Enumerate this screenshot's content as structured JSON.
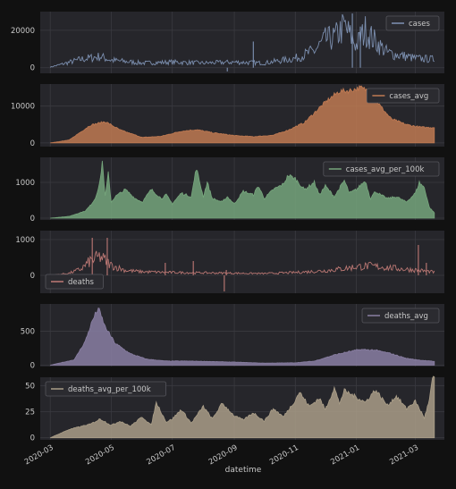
{
  "figure": {
    "background": "#111111",
    "axes_background": "#26262b",
    "grid_color": "#3a3a40",
    "tick_text_color": "#c8c8c8"
  },
  "chart_data": [
    {
      "type": "line",
      "name": "cases",
      "title": "",
      "xlabel": "",
      "ylabel": "",
      "color": "#7f93b5",
      "ylim": [
        -3000,
        30000
      ],
      "yticks": [
        0,
        20000
      ],
      "legend": {
        "label": "cases",
        "position": "top-right"
      },
      "x": [
        "2020-03-01",
        "2020-04-01",
        "2020-04-20",
        "2020-05-01",
        "2020-06-01",
        "2020-07-01",
        "2020-08-01",
        "2020-09-01",
        "2020-10-01",
        "2020-11-01",
        "2020-11-20",
        "2020-12-01",
        "2020-12-10",
        "2020-12-20",
        "2021-01-01",
        "2021-01-10",
        "2021-01-20",
        "2021-02-01",
        "2021-02-15",
        "2021-03-01",
        "2021-03-20"
      ],
      "y": [
        300,
        4500,
        6000,
        4000,
        2500,
        3000,
        2500,
        3000,
        2500,
        5000,
        9000,
        15000,
        16000,
        22000,
        12000,
        20000,
        14000,
        8000,
        6500,
        5000,
        4500
      ],
      "spikes": [
        [
          "2020-09-20",
          14000
        ],
        [
          "2020-12-28",
          29000
        ],
        [
          "2021-01-05",
          22000
        ],
        [
          "2020-08-25",
          -2000
        ]
      ]
    },
    {
      "type": "area",
      "name": "cases_avg",
      "title": "",
      "xlabel": "",
      "ylabel": "",
      "color": "#c07a52",
      "ylim": [
        -1000,
        16000
      ],
      "yticks": [
        0,
        10000
      ],
      "legend": {
        "label": "cases_avg",
        "position": "top-right"
      },
      "x": [
        "2020-03-01",
        "2020-03-20",
        "2020-04-10",
        "2020-04-25",
        "2020-05-10",
        "2020-06-01",
        "2020-06-20",
        "2020-07-10",
        "2020-07-25",
        "2020-08-10",
        "2020-09-01",
        "2020-09-20",
        "2020-10-10",
        "2020-10-25",
        "2020-11-10",
        "2020-11-25",
        "2020-12-05",
        "2020-12-15",
        "2020-12-25",
        "2021-01-05",
        "2021-01-15",
        "2021-01-25",
        "2021-02-05",
        "2021-02-20",
        "2021-03-01",
        "2021-03-10",
        "2021-03-20"
      ],
      "y": [
        0,
        800,
        4800,
        5800,
        3500,
        1500,
        1800,
        3200,
        3600,
        2800,
        2000,
        1700,
        2100,
        3500,
        5500,
        9500,
        12000,
        14000,
        14200,
        15000,
        14000,
        10000,
        6500,
        5000,
        4500,
        4200,
        4200
      ]
    },
    {
      "type": "area",
      "name": "cases_avg_per_100k",
      "title": "",
      "xlabel": "",
      "ylabel": "",
      "color": "#76a67c",
      "ylim": [
        -50,
        1700
      ],
      "yticks": [
        0,
        1000
      ],
      "legend": {
        "label": "cases_avg_per_100k",
        "position": "top-right"
      },
      "x": [
        "2020-03-01",
        "2020-03-20",
        "2020-04-05",
        "2020-04-10",
        "2020-04-15",
        "2020-04-20",
        "2020-04-22",
        "2020-04-25",
        "2020-04-28",
        "2020-05-01",
        "2020-05-05",
        "2020-05-15",
        "2020-05-25",
        "2020-06-01",
        "2020-06-10",
        "2020-06-20",
        "2020-06-25",
        "2020-07-01",
        "2020-07-10",
        "2020-07-20",
        "2020-07-25",
        "2020-08-01",
        "2020-08-05",
        "2020-08-10",
        "2020-08-20",
        "2020-08-25",
        "2020-09-01",
        "2020-09-10",
        "2020-09-20",
        "2020-09-25",
        "2020-10-01",
        "2020-10-10",
        "2020-10-20",
        "2020-10-25",
        "2020-11-01",
        "2020-11-10",
        "2020-11-20",
        "2020-11-25",
        "2020-12-01",
        "2020-12-10",
        "2020-12-20",
        "2020-12-25",
        "2021-01-01",
        "2021-01-10",
        "2021-01-15",
        "2021-01-20",
        "2021-01-25",
        "2021-02-01",
        "2021-02-10",
        "2021-02-20",
        "2021-03-01",
        "2021-03-05",
        "2021-03-10",
        "2021-03-15",
        "2021-03-20"
      ],
      "y": [
        0,
        50,
        200,
        350,
        550,
        1050,
        1600,
        600,
        1250,
        450,
        600,
        800,
        550,
        450,
        800,
        550,
        650,
        400,
        700,
        600,
        1400,
        600,
        1000,
        550,
        450,
        600,
        400,
        750,
        650,
        900,
        550,
        800,
        950,
        1200,
        1100,
        800,
        1000,
        650,
        900,
        600,
        1050,
        700,
        800,
        1050,
        550,
        750,
        650,
        550,
        600,
        450,
        700,
        1000,
        850,
        300,
        150
      ]
    },
    {
      "type": "line",
      "name": "deaths",
      "title": "",
      "xlabel": "",
      "ylabel": "",
      "color": "#c07a76",
      "ylim": [
        -500,
        1250
      ],
      "yticks": [
        0,
        1000
      ],
      "legend": {
        "label": "deaths",
        "position": "bottom-left"
      },
      "x": [
        "2020-03-01",
        "2020-03-20",
        "2020-04-01",
        "2020-04-10",
        "2020-04-20",
        "2020-05-01",
        "2020-05-15",
        "2020-06-01",
        "2020-07-01",
        "2020-08-01",
        "2020-09-01",
        "2020-10-01",
        "2020-11-01",
        "2020-12-01",
        "2020-12-20",
        "2021-01-01",
        "2021-01-15",
        "2021-02-01",
        "2021-02-15",
        "2021-03-01",
        "2021-03-20"
      ],
      "y": [
        0,
        60,
        180,
        400,
        520,
        280,
        140,
        100,
        80,
        70,
        60,
        50,
        80,
        130,
        190,
        240,
        260,
        220,
        180,
        150,
        90
      ],
      "spikes": [
        [
          "2020-04-12",
          1050
        ],
        [
          "2020-04-27",
          1050
        ],
        [
          "2020-06-24",
          350
        ],
        [
          "2020-07-22",
          400
        ],
        [
          "2020-08-22",
          -450
        ],
        [
          "2020-08-24",
          150
        ],
        [
          "2021-03-04",
          850
        ],
        [
          "2021-03-12",
          350
        ]
      ]
    },
    {
      "type": "area",
      "name": "deaths_avg",
      "title": "",
      "xlabel": "",
      "ylabel": "",
      "color": "#8a7fa3",
      "ylim": [
        -20,
        900
      ],
      "yticks": [
        0,
        500
      ],
      "legend": {
        "label": "deaths_avg",
        "position": "top-right"
      },
      "x": [
        "2020-03-01",
        "2020-03-25",
        "2020-04-05",
        "2020-04-12",
        "2020-04-18",
        "2020-04-25",
        "2020-05-05",
        "2020-05-20",
        "2020-06-05",
        "2020-06-25",
        "2020-07-15",
        "2020-08-05",
        "2020-09-01",
        "2020-10-01",
        "2020-11-01",
        "2020-11-20",
        "2020-12-10",
        "2020-12-25",
        "2021-01-05",
        "2021-01-20",
        "2021-02-05",
        "2021-02-20",
        "2021-03-05",
        "2021-03-20"
      ],
      "y": [
        0,
        80,
        350,
        650,
        840,
        560,
        320,
        170,
        90,
        60,
        60,
        55,
        45,
        30,
        35,
        60,
        150,
        200,
        230,
        220,
        170,
        100,
        75,
        55
      ]
    },
    {
      "type": "area",
      "name": "deaths_avg_per_100k",
      "title": "",
      "xlabel": "",
      "ylabel": "",
      "color": "#aa9e88",
      "ylim": [
        -2,
        58
      ],
      "yticks": [
        0,
        25,
        50
      ],
      "legend": {
        "label": "deaths_avg_per_100k",
        "position": "top-left"
      },
      "x": [
        "2020-03-01",
        "2020-03-20",
        "2020-04-10",
        "2020-04-20",
        "2020-05-01",
        "2020-05-10",
        "2020-05-20",
        "2020-06-01",
        "2020-06-10",
        "2020-06-15",
        "2020-06-25",
        "2020-07-01",
        "2020-07-10",
        "2020-07-20",
        "2020-08-01",
        "2020-08-10",
        "2020-08-20",
        "2020-09-01",
        "2020-09-10",
        "2020-09-20",
        "2020-10-01",
        "2020-10-10",
        "2020-10-20",
        "2020-11-01",
        "2020-11-05",
        "2020-11-15",
        "2020-11-25",
        "2020-12-01",
        "2020-12-10",
        "2020-12-15",
        "2020-12-20",
        "2021-01-01",
        "2021-01-10",
        "2021-01-20",
        "2021-02-01",
        "2021-02-10",
        "2021-02-20",
        "2021-03-01",
        "2021-03-10",
        "2021-03-15",
        "2021-03-18",
        "2021-03-20"
      ],
      "y": [
        0,
        8,
        13,
        18,
        12,
        16,
        11,
        20,
        12,
        34,
        15,
        18,
        27,
        14,
        30,
        18,
        33,
        21,
        17,
        24,
        16,
        28,
        20,
        36,
        44,
        30,
        38,
        27,
        48,
        33,
        45,
        39,
        34,
        46,
        31,
        40,
        28,
        35,
        19,
        36,
        56,
        57
      ]
    }
  ],
  "x_axis": {
    "label": "datetime",
    "range": [
      "2020-02-20",
      "2021-03-30"
    ],
    "ticks": [
      "2020-03",
      "2020-05",
      "2020-07",
      "2020-09",
      "2020-11",
      "2021-01",
      "2021-03"
    ]
  }
}
